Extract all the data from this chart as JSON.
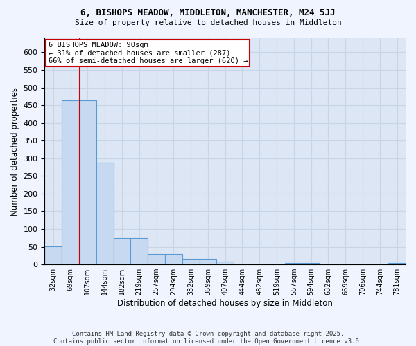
{
  "title1": "6, BISHOPS MEADOW, MIDDLETON, MANCHESTER, M24 5JJ",
  "title2": "Size of property relative to detached houses in Middleton",
  "xlabel": "Distribution of detached houses by size in Middleton",
  "ylabel": "Number of detached properties",
  "categories": [
    "32sqm",
    "69sqm",
    "107sqm",
    "144sqm",
    "182sqm",
    "219sqm",
    "257sqm",
    "294sqm",
    "332sqm",
    "369sqm",
    "407sqm",
    "444sqm",
    "482sqm",
    "519sqm",
    "557sqm",
    "594sqm",
    "632sqm",
    "669sqm",
    "706sqm",
    "744sqm",
    "781sqm"
  ],
  "values": [
    52,
    463,
    463,
    287,
    75,
    75,
    30,
    30,
    15,
    15,
    8,
    0,
    0,
    0,
    5,
    5,
    0,
    0,
    0,
    0,
    5
  ],
  "bar_color": "#c6d9f0",
  "bar_edge_color": "#5b9bd5",
  "vline_color": "#cc0000",
  "annotation_text": "6 BISHOPS MEADOW: 90sqm\n← 31% of detached houses are smaller (287)\n66% of semi-detached houses are larger (620) →",
  "annotation_box_color": "#ffffff",
  "annotation_box_edge": "#cc0000",
  "footer": "Contains HM Land Registry data © Crown copyright and database right 2025.\nContains public sector information licensed under the Open Government Licence v3.0.",
  "ylim": [
    0,
    640
  ],
  "yticks": [
    0,
    50,
    100,
    150,
    200,
    250,
    300,
    350,
    400,
    450,
    500,
    550,
    600
  ],
  "grid_color": "#c8d4e8",
  "bg_color": "#dce6f5",
  "fig_bg_color": "#f0f4ff"
}
